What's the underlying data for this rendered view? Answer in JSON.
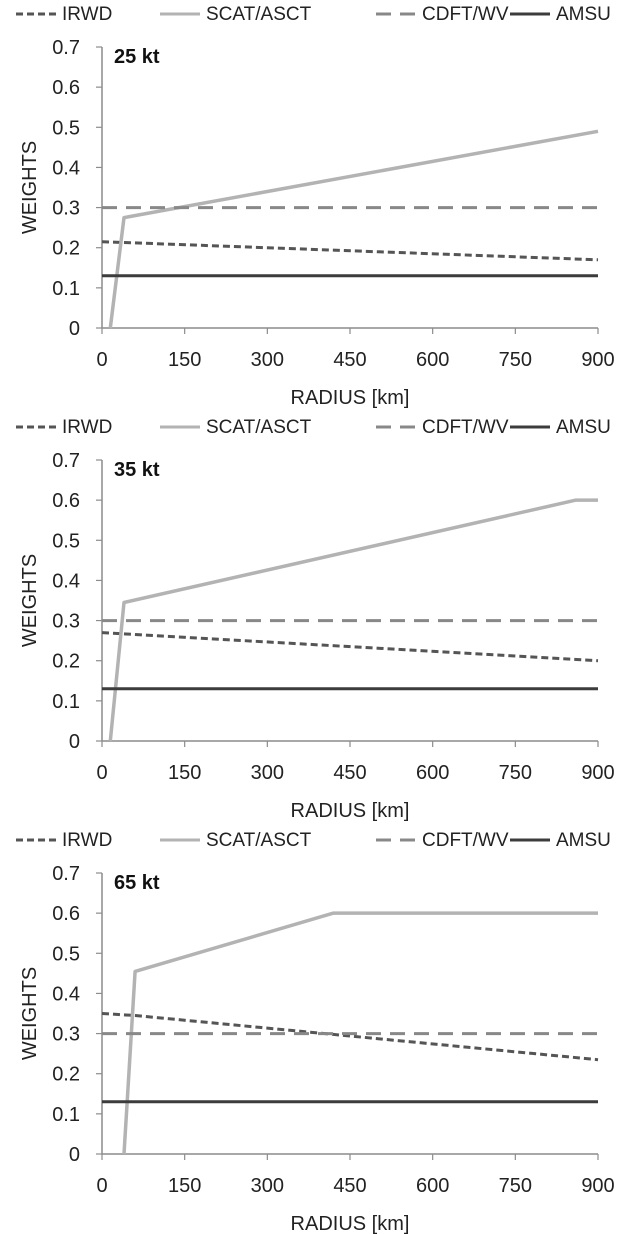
{
  "colors": {
    "background": "#ffffff",
    "axis": "#8c8c8c",
    "text": "#222222",
    "IRWD": "#555555",
    "SCAT/ASCT": "#b3b3b3",
    "CDFT/WV": "#888888",
    "AMSU": "#3c3c3c"
  },
  "chart_data": [
    {
      "type": "line",
      "panel_label": "25 kt",
      "xlabel": "RADIUS [km]",
      "ylabel": "WEIGHTS",
      "xlim": [
        0,
        900
      ],
      "ylim": [
        0,
        0.7
      ],
      "xticks": [
        "0",
        "150",
        "300",
        "450",
        "600",
        "750",
        "900"
      ],
      "yticks": [
        "0",
        "0.1",
        "0.2",
        "0.3",
        "0.4",
        "0.5",
        "0.6",
        "0.7"
      ],
      "grid": false,
      "legend_position": "top",
      "series": [
        {
          "name": "IRWD",
          "style": "short-dash",
          "points": [
            [
              0,
              0.215
            ],
            [
              900,
              0.17
            ]
          ]
        },
        {
          "name": "SCAT/ASCT",
          "style": "solid",
          "points": [
            [
              15,
              0
            ],
            [
              40,
              0.275
            ],
            [
              900,
              0.49
            ]
          ]
        },
        {
          "name": "CDFT/WV",
          "style": "long-dash",
          "points": [
            [
              0,
              0.3
            ],
            [
              900,
              0.3
            ]
          ]
        },
        {
          "name": "AMSU",
          "style": "solid",
          "points": [
            [
              0,
              0.13
            ],
            [
              900,
              0.13
            ]
          ]
        }
      ]
    },
    {
      "type": "line",
      "panel_label": "35 kt",
      "xlabel": "RADIUS [km]",
      "ylabel": "WEIGHTS",
      "xlim": [
        0,
        900
      ],
      "ylim": [
        0,
        0.7
      ],
      "xticks": [
        "0",
        "150",
        "300",
        "450",
        "600",
        "750",
        "900"
      ],
      "yticks": [
        "0",
        "0.1",
        "0.2",
        "0.3",
        "0.4",
        "0.5",
        "0.6",
        "0.7"
      ],
      "grid": false,
      "legend_position": "top",
      "series": [
        {
          "name": "IRWD",
          "style": "short-dash",
          "points": [
            [
              0,
              0.27
            ],
            [
              900,
              0.2
            ]
          ]
        },
        {
          "name": "SCAT/ASCT",
          "style": "solid",
          "points": [
            [
              15,
              0
            ],
            [
              40,
              0.345
            ],
            [
              860,
              0.6
            ],
            [
              900,
              0.6
            ]
          ]
        },
        {
          "name": "CDFT/WV",
          "style": "long-dash",
          "points": [
            [
              0,
              0.3
            ],
            [
              900,
              0.3
            ]
          ]
        },
        {
          "name": "AMSU",
          "style": "solid",
          "points": [
            [
              0,
              0.13
            ],
            [
              900,
              0.13
            ]
          ]
        }
      ]
    },
    {
      "type": "line",
      "panel_label": "65 kt",
      "xlabel": "RADIUS [km]",
      "ylabel": "WEIGHTS",
      "xlim": [
        0,
        900
      ],
      "ylim": [
        0,
        0.7
      ],
      "xticks": [
        "0",
        "150",
        "300",
        "450",
        "600",
        "750",
        "900"
      ],
      "yticks": [
        "0",
        "0.1",
        "0.2",
        "0.3",
        "0.4",
        "0.5",
        "0.6",
        "0.7"
      ],
      "grid": false,
      "legend_position": "top",
      "series": [
        {
          "name": "IRWD",
          "style": "short-dash",
          "points": [
            [
              0,
              0.35
            ],
            [
              60,
              0.345
            ],
            [
              900,
              0.235
            ]
          ]
        },
        {
          "name": "SCAT/ASCT",
          "style": "solid",
          "points": [
            [
              40,
              0
            ],
            [
              60,
              0.455
            ],
            [
              420,
              0.6
            ],
            [
              900,
              0.6
            ]
          ]
        },
        {
          "name": "CDFT/WV",
          "style": "long-dash",
          "points": [
            [
              0,
              0.3
            ],
            [
              900,
              0.3
            ]
          ]
        },
        {
          "name": "AMSU",
          "style": "solid",
          "points": [
            [
              0,
              0.13
            ],
            [
              900,
              0.13
            ]
          ]
        }
      ]
    }
  ]
}
